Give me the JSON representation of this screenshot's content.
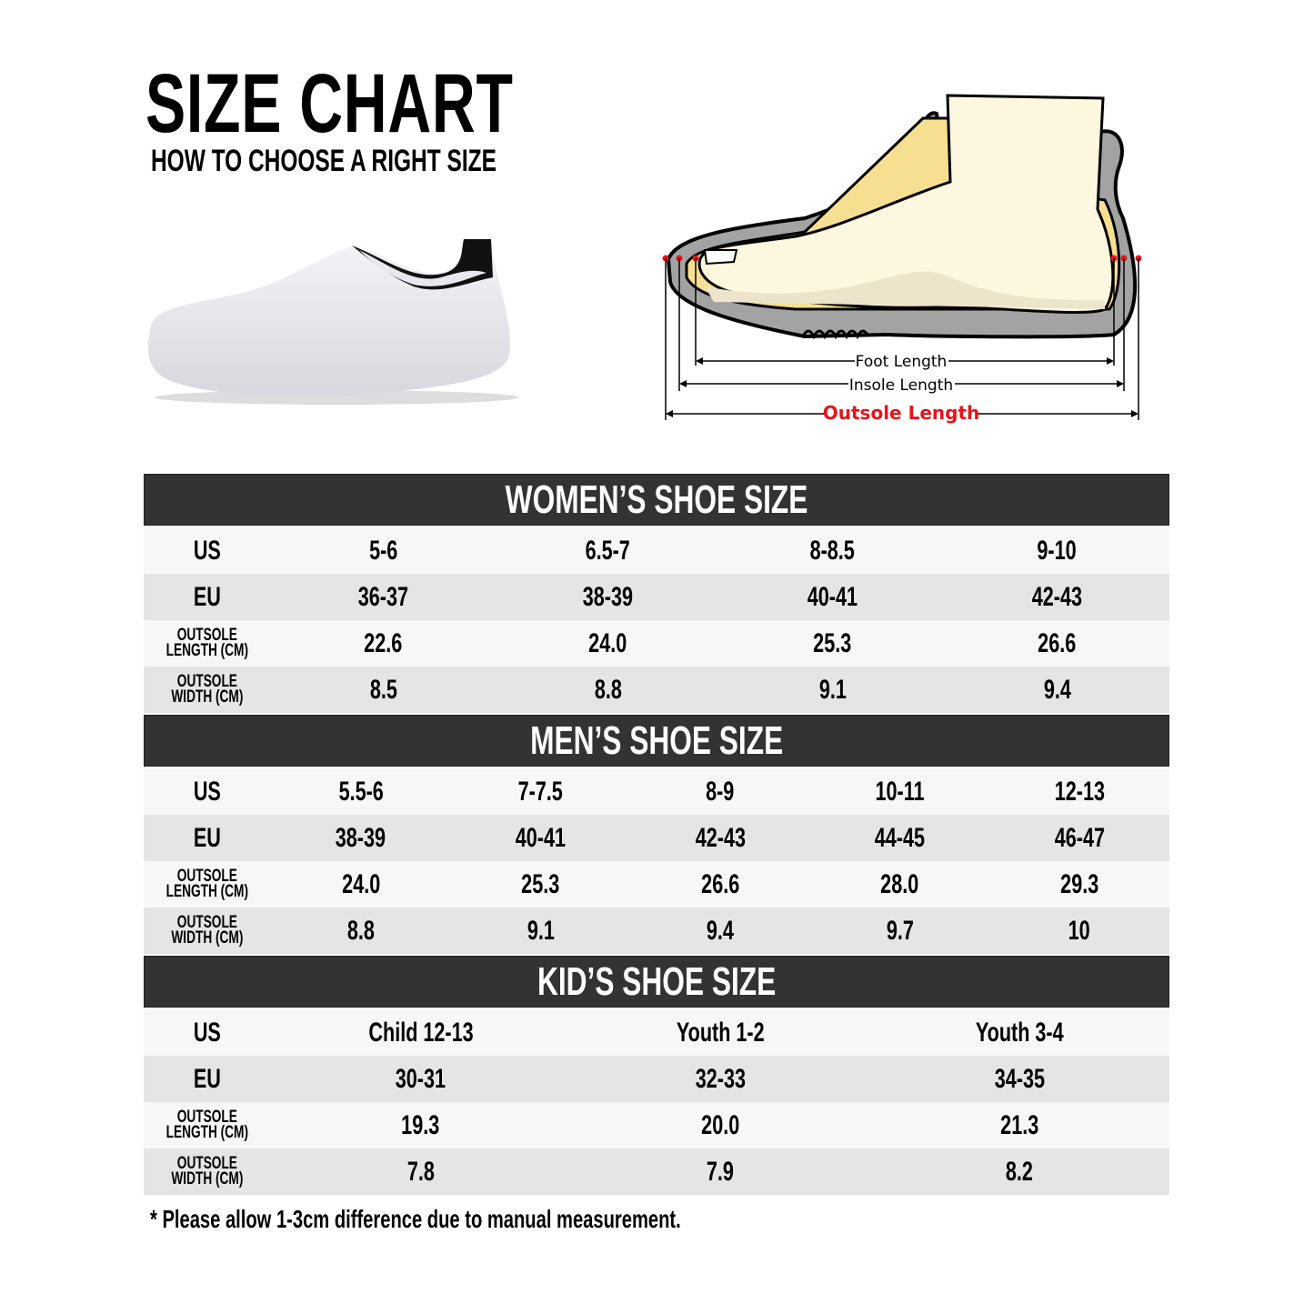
{
  "header": {
    "title": "SIZE CHART",
    "subtitle": "HOW TO CHOOSE A RIGHT SIZE"
  },
  "diagram": {
    "foot_length": "Foot Length",
    "insole_length": "Insole Length",
    "outsole_length": "Outsole Length",
    "outsole_color": "#e8141b"
  },
  "colors": {
    "section_header": "#333333",
    "row_light": "#f7f7f7",
    "row_dark": "#e5e5e5"
  },
  "row_labels": {
    "us": "US",
    "eu": "EU",
    "outsole": "OUTSOLE",
    "length_cm": "LENGTH (CM)",
    "width_cm": "WIDTH (CM)"
  },
  "women": {
    "title": "WOMEN’S SHOE SIZE",
    "us": [
      "5-6",
      "6.5-7",
      "8-8.5",
      "9-10"
    ],
    "eu": [
      "36-37",
      "38-39",
      "40-41",
      "42-43"
    ],
    "length": [
      "22.6",
      "24.0",
      "25.3",
      "26.6"
    ],
    "width": [
      "8.5",
      "8.8",
      "9.1",
      "9.4"
    ]
  },
  "men": {
    "title": "MEN’S SHOE SIZE",
    "us": [
      "5.5-6",
      "7-7.5",
      "8-9",
      "10-11",
      "12-13"
    ],
    "eu": [
      "38-39",
      "40-41",
      "42-43",
      "44-45",
      "46-47"
    ],
    "length": [
      "24.0",
      "25.3",
      "26.6",
      "28.0",
      "29.3"
    ],
    "width": [
      "8.8",
      "9.1",
      "9.4",
      "9.7",
      "10"
    ]
  },
  "kid": {
    "title": "KID’S SHOE SIZE",
    "us": [
      "Child 12-13",
      "Youth 1-2",
      "Youth 3-4"
    ],
    "eu": [
      "30-31",
      "32-33",
      "34-35"
    ],
    "length": [
      "19.3",
      "20.0",
      "21.3"
    ],
    "width": [
      "7.8",
      "7.9",
      "8.2"
    ]
  },
  "footnote": "* Please allow 1-3cm difference due to manual measurement."
}
